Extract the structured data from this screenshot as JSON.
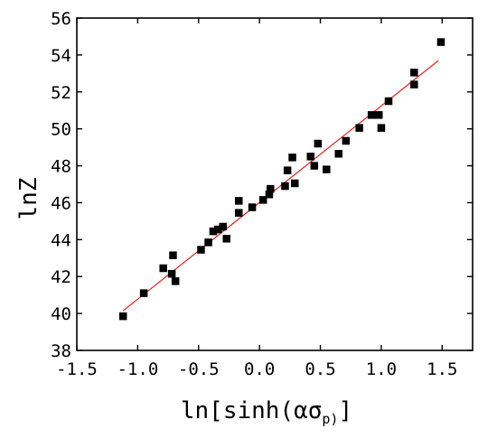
{
  "chart_data": {
    "type": "scatter",
    "title": "",
    "xlabel_prefix": "ln[sinh(",
    "xlabel_greek": "ασ",
    "xlabel_sub": "p)",
    "xlabel_suffix": "]",
    "ylabel": "lnZ",
    "xlim": [
      -1.5,
      1.75
    ],
    "ylim": [
      38,
      56
    ],
    "xticks": [
      -1.5,
      -1.0,
      -0.5,
      0.0,
      0.5,
      1.0,
      1.5
    ],
    "xtick_labels": [
      "-1.5",
      "-1.0",
      "-0.5",
      "0.0",
      "0.5",
      "1.0",
      "1.5"
    ],
    "yticks": [
      38,
      40,
      42,
      44,
      46,
      48,
      50,
      52,
      54,
      56
    ],
    "ytick_labels": [
      "38",
      "40",
      "42",
      "44",
      "46",
      "48",
      "50",
      "52",
      "54",
      "56"
    ],
    "grid": false,
    "marker_color": "#000000",
    "fit_line_color": "#e02020",
    "points": [
      {
        "x": -1.12,
        "y": 39.85
      },
      {
        "x": -0.95,
        "y": 41.1
      },
      {
        "x": -0.79,
        "y": 42.45
      },
      {
        "x": -0.72,
        "y": 42.15
      },
      {
        "x": -0.71,
        "y": 43.15
      },
      {
        "x": -0.69,
        "y": 41.75
      },
      {
        "x": -0.48,
        "y": 43.45
      },
      {
        "x": -0.42,
        "y": 43.85
      },
      {
        "x": -0.38,
        "y": 44.45
      },
      {
        "x": -0.34,
        "y": 44.55
      },
      {
        "x": -0.3,
        "y": 44.7
      },
      {
        "x": -0.27,
        "y": 44.05
      },
      {
        "x": -0.17,
        "y": 45.45
      },
      {
        "x": -0.17,
        "y": 46.1
      },
      {
        "x": -0.06,
        "y": 45.75
      },
      {
        "x": 0.03,
        "y": 46.15
      },
      {
        "x": 0.08,
        "y": 46.45
      },
      {
        "x": 0.09,
        "y": 46.75
      },
      {
        "x": 0.21,
        "y": 46.9
      },
      {
        "x": 0.23,
        "y": 47.75
      },
      {
        "x": 0.27,
        "y": 48.45
      },
      {
        "x": 0.29,
        "y": 47.05
      },
      {
        "x": 0.42,
        "y": 48.5
      },
      {
        "x": 0.45,
        "y": 48.0
      },
      {
        "x": 0.48,
        "y": 49.2
      },
      {
        "x": 0.55,
        "y": 47.8
      },
      {
        "x": 0.65,
        "y": 48.65
      },
      {
        "x": 0.71,
        "y": 49.35
      },
      {
        "x": 0.82,
        "y": 50.05
      },
      {
        "x": 0.92,
        "y": 50.75
      },
      {
        "x": 0.98,
        "y": 50.75
      },
      {
        "x": 1.0,
        "y": 50.05
      },
      {
        "x": 1.06,
        "y": 51.5
      },
      {
        "x": 1.27,
        "y": 52.4
      },
      {
        "x": 1.27,
        "y": 53.05
      },
      {
        "x": 1.49,
        "y": 54.7
      }
    ],
    "fit_line": {
      "x": [
        -1.12,
        1.47
      ],
      "y": [
        40.15,
        53.7
      ]
    }
  }
}
